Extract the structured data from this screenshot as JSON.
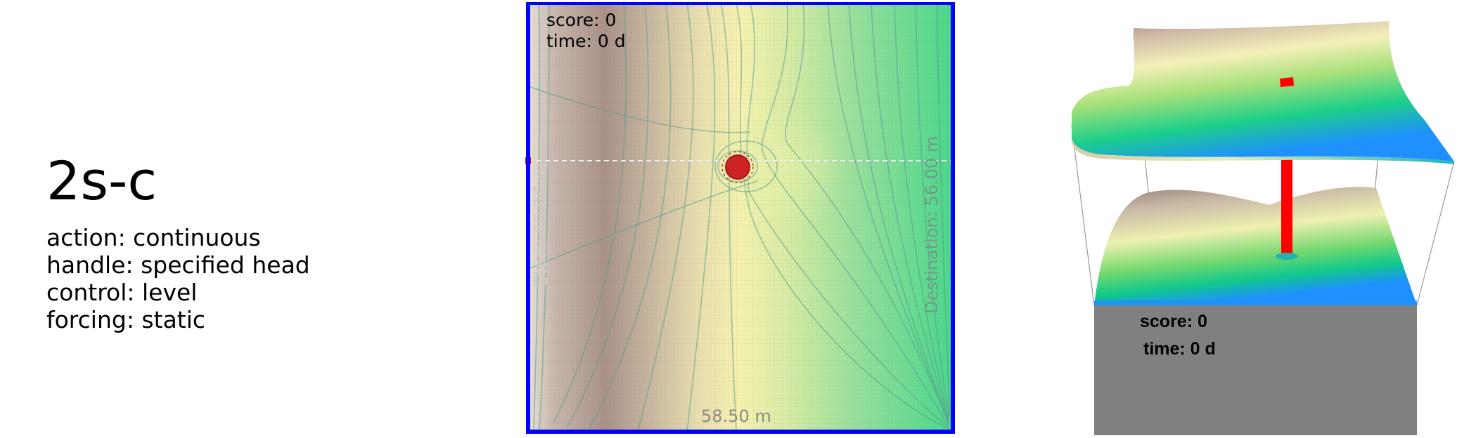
{
  "info": {
    "env_name": "2s-c",
    "lines": [
      {
        "key": "action",
        "value": "continuous",
        "text": "action: continuous"
      },
      {
        "key": "handle",
        "value": "specified head",
        "text": "handle: specified head"
      },
      {
        "key": "control",
        "value": "level",
        "text": "control: level"
      },
      {
        "key": "forcing",
        "value": "static",
        "text": "forcing: static"
      }
    ]
  },
  "map2d": {
    "score_text": "score: 0",
    "time_text": "time: 0 d",
    "start_label": "Start:  60.00 m",
    "destination_label": "Destination:  56.00 m",
    "bottom_label": "58.50 m",
    "colors": {
      "border": "#0000ff",
      "well": "#cc2222",
      "start_marker": "#ff0000",
      "high_head": "#b7a497",
      "mid_head": "#f6f1b0",
      "low_head": "#46d98a"
    }
  },
  "view3d": {
    "score_text": "score: 0",
    "time_text": "time: 0 d",
    "colors": {
      "well_column": "#ff0000",
      "base_block": "#808080",
      "top_surface": "#a08a84",
      "deep_edge": "#1e90ff"
    }
  },
  "icons": [
    "start-marker-icon",
    "well-icon"
  ]
}
